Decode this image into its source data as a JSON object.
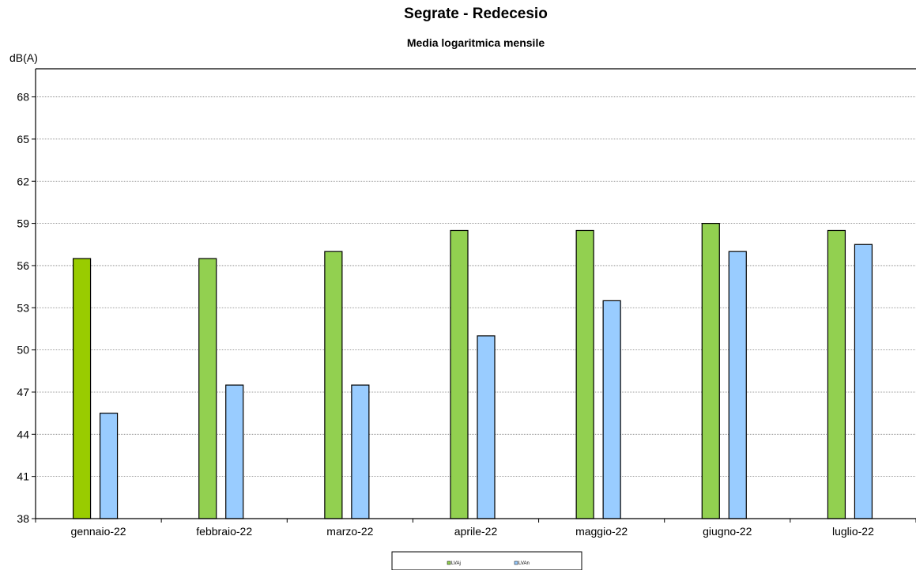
{
  "chart_data": {
    "type": "bar",
    "title": "Segrate - Redecesio",
    "subtitle": "Media logaritmica mensile",
    "ylabel": "dB(A)",
    "xlabel": "",
    "ylim": [
      38,
      70
    ],
    "yticks": [
      38,
      41,
      44,
      47,
      50,
      53,
      56,
      59,
      62,
      65,
      68
    ],
    "grid": true,
    "legend_position": "bottom",
    "categories": [
      "gennaio-22",
      "febbraio-22",
      "marzo-22",
      "aprile-22",
      "maggio-22",
      "giugno-22",
      "luglio-22"
    ],
    "series": [
      {
        "name": "LVAj",
        "color": "#92d050",
        "values": [
          56.5,
          56.5,
          57.0,
          58.5,
          58.5,
          59.0,
          58.5
        ]
      },
      {
        "name": "LVAn",
        "color": "#99ccff",
        "values": [
          45.5,
          47.5,
          47.5,
          51.0,
          53.5,
          57.0,
          57.5
        ]
      }
    ],
    "first_bar_color": "#99cc00"
  }
}
